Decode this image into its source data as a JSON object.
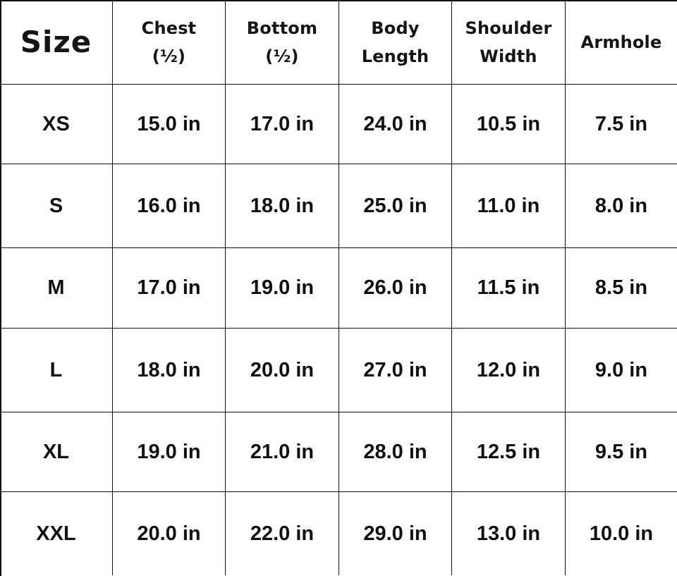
{
  "table": {
    "headers": [
      "Size",
      "Chest (½)",
      "Bottom (½)",
      "Body Length",
      "Shoulder Width",
      "Armhole"
    ],
    "rows": [
      [
        "XS",
        "15.0 in",
        "17.0 in",
        "24.0 in",
        "10.5 in",
        "7.5 in"
      ],
      [
        "S",
        "16.0 in",
        "18.0 in",
        "25.0 in",
        "11.0 in",
        "8.0 in"
      ],
      [
        "M",
        "17.0 in",
        "19.0 in",
        "26.0 in",
        "11.5 in",
        "8.5 in"
      ],
      [
        "L",
        "18.0 in",
        "20.0 in",
        "27.0 in",
        "12.0 in",
        "9.0 in"
      ],
      [
        "XL",
        "19.0 in",
        "21.0 in",
        "28.0 in",
        "12.5 in",
        "9.5 in"
      ],
      [
        "XXL",
        "20.0 in",
        "22.0 in",
        "29.0 in",
        "13.0 in",
        "10.0 in"
      ]
    ]
  }
}
